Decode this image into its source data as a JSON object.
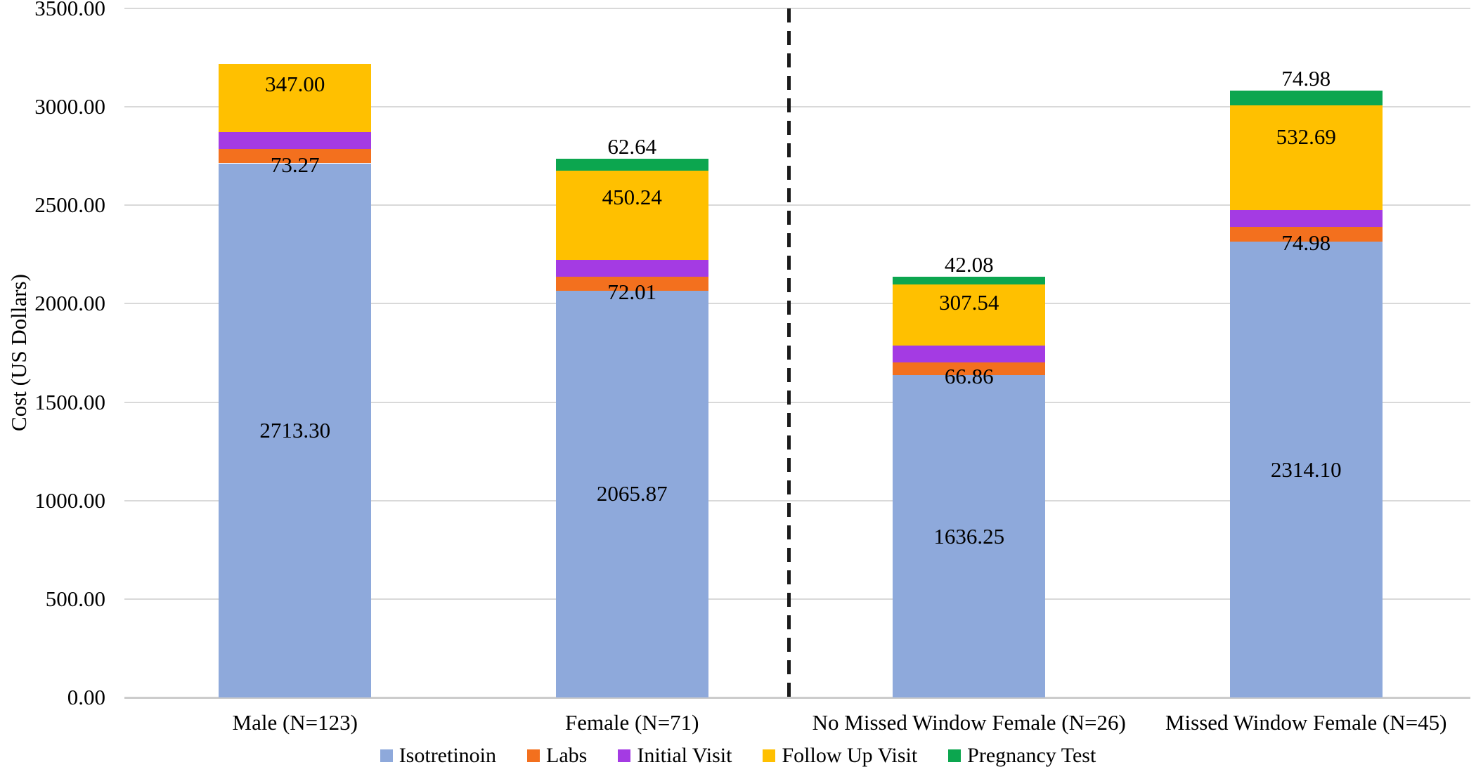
{
  "chart_data": {
    "type": "bar",
    "stacked": true,
    "ylabel": "Cost (US Dollars)",
    "ylim": [
      0,
      3500
    ],
    "ytick_step": 500,
    "ytick_labels": [
      "0.00",
      "500.00",
      "1000.00",
      "1500.00",
      "2000.00",
      "2500.00",
      "3000.00",
      "3500.00"
    ],
    "categories": [
      "Male (N=123)",
      "Female (N=71)",
      "No Missed Window Female (N=26)",
      "Missed Window Female (N=45)"
    ],
    "series": [
      {
        "name": "Isotretinoin",
        "color": "#8EA9DB",
        "values": [
          2713.3,
          2065.87,
          1636.25,
          2314.1
        ],
        "labels": [
          "2713.30",
          "2065.87",
          "1636.25",
          "2314.10"
        ]
      },
      {
        "name": "Labs",
        "color": "#F3701E",
        "values": [
          73.27,
          72.01,
          66.86,
          74.98
        ],
        "labels": [
          "73.27",
          "72.01",
          "66.86",
          "74.98"
        ]
      },
      {
        "name": "Initial Visit",
        "color": "#A43BE3",
        "values": [
          85.96,
          86.15,
          86.05,
          86.21
        ],
        "labels": [
          "85.96",
          "86.15",
          "86.05",
          "86.21"
        ]
      },
      {
        "name": "Follow Up Visit",
        "color": "#FFC000",
        "values": [
          347.0,
          450.24,
          307.54,
          532.69
        ],
        "labels": [
          "347.00",
          "450.24",
          "307.54",
          "532.69"
        ]
      },
      {
        "name": "Pregnancy Test",
        "color": "#0CA64F",
        "values": [
          0,
          62.64,
          42.08,
          74.98
        ],
        "labels": [
          null,
          "62.64",
          "42.08",
          "74.98"
        ]
      }
    ],
    "totals": [
      3219.53,
      2736.91,
      2138.78,
      3082.96
    ],
    "divider_between_categories": [
      2,
      3
    ],
    "grid": true,
    "legend_position": "bottom"
  }
}
